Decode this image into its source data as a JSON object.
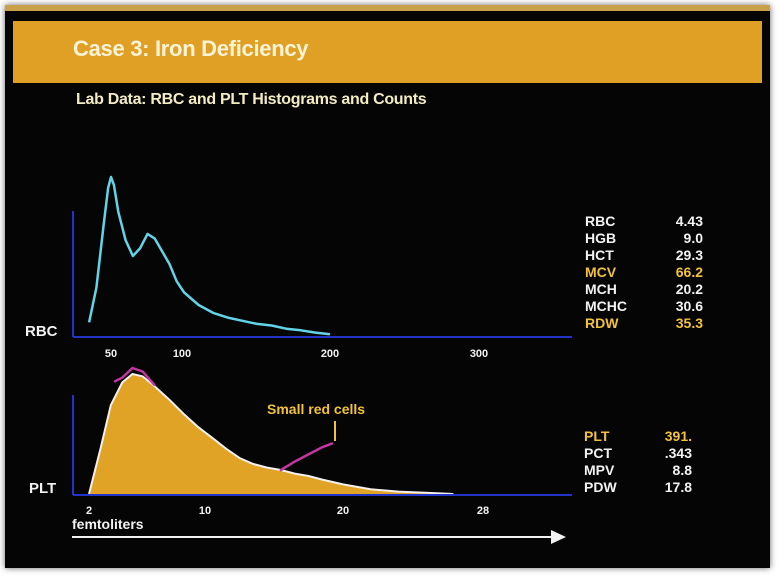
{
  "title": "Case 3: Iron Deficiency",
  "subtitle": "Lab Data: RBC and PLT Histograms and Counts",
  "colors": {
    "banner": "#e0a025",
    "rbc_curve": "#63d3e8",
    "axis": "#2233c8",
    "plt_fill": "#e0a325",
    "plt_outline": "#f3f0ee",
    "small_cells_curve": "#c2369f",
    "highlight_text": "#f2c23a"
  },
  "chart_data": [
    {
      "type": "line",
      "id": "rbc",
      "ylabel": "RBC",
      "xticks": [
        "50",
        "100",
        "200",
        "300"
      ],
      "xlim": [
        35,
        400
      ],
      "series": [
        {
          "x": [
            35,
            40,
            45,
            48,
            50,
            52,
            55,
            60,
            65,
            70,
            75,
            80,
            85,
            90,
            95,
            100,
            110,
            120,
            130,
            140,
            150,
            160,
            170,
            180,
            190,
            200
          ],
          "y": [
            0.08,
            0.3,
            0.7,
            0.93,
            1.0,
            0.95,
            0.78,
            0.6,
            0.5,
            0.55,
            0.64,
            0.61,
            0.53,
            0.45,
            0.34,
            0.27,
            0.19,
            0.14,
            0.11,
            0.09,
            0.07,
            0.06,
            0.04,
            0.03,
            0.015,
            0.005
          ]
        }
      ]
    },
    {
      "type": "area",
      "id": "plt",
      "ylabel": "PLT",
      "xlabel": "femtoliters",
      "xticks": [
        "2",
        "10",
        "20",
        "28"
      ],
      "xlim": [
        0,
        30
      ],
      "series": [
        {
          "x": [
            2,
            2.8,
            3.5,
            4.3,
            5,
            5.7,
            6.5,
            7.5,
            8.5,
            9.5,
            10.5,
            11.5,
            12.5,
            13.5,
            14.5,
            15.5,
            16.5,
            17.5,
            18.5,
            20,
            22,
            24,
            26,
            28
          ],
          "y": [
            0,
            0.38,
            0.74,
            0.93,
            1.0,
            0.98,
            0.9,
            0.79,
            0.67,
            0.56,
            0.47,
            0.38,
            0.3,
            0.25,
            0.22,
            0.2,
            0.17,
            0.15,
            0.12,
            0.08,
            0.04,
            0.02,
            0.01,
            0
          ]
        },
        {
          "x": [
            3.8,
            4.3,
            5,
            5.7,
            6.5,
            15.5,
            16.5,
            17.5,
            18.5,
            19.2
          ],
          "y": [
            0.94,
            0.97,
            1.05,
            1.02,
            0.91,
            0.2,
            0.27,
            0.33,
            0.39,
            0.42
          ]
        }
      ],
      "annotation": "Small red cells"
    }
  ],
  "rbc_indices": [
    {
      "label": "RBC",
      "value": "4.43",
      "highlight": false
    },
    {
      "label": "HGB",
      "value": "9.0",
      "highlight": false
    },
    {
      "label": "HCT",
      "value": "29.3",
      "highlight": false
    },
    {
      "label": "MCV",
      "value": "66.2",
      "highlight": true
    },
    {
      "label": "MCH",
      "value": "20.2",
      "highlight": false
    },
    {
      "label": "MCHC",
      "value": "30.6",
      "highlight": false
    },
    {
      "label": "RDW",
      "value": "35.3",
      "highlight": true
    }
  ],
  "plt_indices": [
    {
      "label": "PLT",
      "value": "391.",
      "highlight": true
    },
    {
      "label": "PCT",
      "value": ".343",
      "highlight": false
    },
    {
      "label": "MPV",
      "value": "8.8",
      "highlight": false
    },
    {
      "label": "PDW",
      "value": "17.8",
      "highlight": false
    }
  ]
}
